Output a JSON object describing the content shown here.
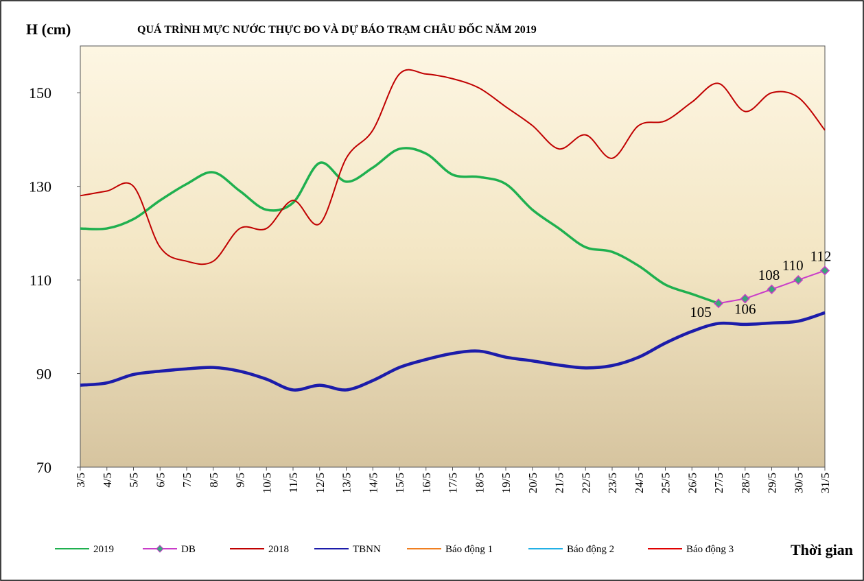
{
  "chart_data": {
    "type": "line",
    "title": "QUÁ TRÌNH MỰC NƯỚC THỰC ĐO VÀ DỰ BÁO TRẠM CHÂU ĐỐC NĂM 2019",
    "y_label": "H (cm)",
    "x_label": "Thời gian",
    "categories": [
      "3/5",
      "4/5",
      "5/5",
      "6/5",
      "7/5",
      "8/5",
      "9/5",
      "10/5",
      "11/5",
      "12/5",
      "13/5",
      "14/5",
      "15/5",
      "16/5",
      "17/5",
      "18/5",
      "19/5",
      "20/5",
      "21/5",
      "22/5",
      "23/5",
      "24/5",
      "25/5",
      "26/5",
      "27/5",
      "28/5",
      "29/5",
      "30/5",
      "31/5"
    ],
    "ylim": [
      70,
      160
    ],
    "yticks": [
      70,
      90,
      110,
      130,
      150
    ],
    "series": [
      {
        "name": "2019",
        "color": "#1fb04f",
        "values": [
          121,
          121,
          123,
          127,
          130.5,
          133,
          129,
          125,
          126.5,
          135,
          131,
          134,
          138,
          137,
          132.5,
          132,
          130.5,
          125,
          121,
          117,
          116,
          113,
          109,
          107,
          105,
          null,
          null,
          null,
          null
        ]
      },
      {
        "name": "DB",
        "color": "#c93cc9",
        "values": [
          null,
          null,
          null,
          null,
          null,
          null,
          null,
          null,
          null,
          null,
          null,
          null,
          null,
          null,
          null,
          null,
          null,
          null,
          null,
          null,
          null,
          null,
          null,
          null,
          105,
          106,
          108,
          110,
          112
        ]
      },
      {
        "name": "2018",
        "color": "#c00000",
        "values": [
          128,
          129,
          130,
          117,
          114,
          114,
          121,
          121,
          127,
          122,
          136,
          142,
          154,
          154,
          153,
          151,
          147,
          143,
          138,
          141,
          136,
          143,
          144,
          148,
          152,
          146,
          150,
          149,
          142
        ]
      },
      {
        "name": "TBNN",
        "color": "#1c1caa",
        "values": [
          87.5,
          88,
          89.8,
          90.5,
          91,
          91.3,
          90.5,
          88.8,
          86.5,
          87.5,
          86.5,
          88.5,
          91.3,
          93,
          94.3,
          94.8,
          93.5,
          92.7,
          91.8,
          91.2,
          91.7,
          93.5,
          96.5,
          99,
          100.7,
          100.5,
          100.8,
          101.2,
          103
        ]
      },
      {
        "name": "Báo động 1",
        "color": "#f07f20",
        "values": [
          null,
          null,
          null,
          null,
          null,
          null,
          null,
          null,
          null,
          null,
          null,
          null,
          null,
          null,
          null,
          null,
          null,
          null,
          null,
          null,
          null,
          null,
          null,
          null,
          null,
          null,
          null,
          null,
          null
        ]
      },
      {
        "name": "Báo động 2",
        "color": "#22b0e6",
        "values": [
          null,
          null,
          null,
          null,
          null,
          null,
          null,
          null,
          null,
          null,
          null,
          null,
          null,
          null,
          null,
          null,
          null,
          null,
          null,
          null,
          null,
          null,
          null,
          null,
          null,
          null,
          null,
          null,
          null
        ]
      },
      {
        "name": "Báo động 3",
        "color": "#e00000",
        "values": [
          null,
          null,
          null,
          null,
          null,
          null,
          null,
          null,
          null,
          null,
          null,
          null,
          null,
          null,
          null,
          null,
          null,
          null,
          null,
          null,
          null,
          null,
          null,
          null,
          null,
          null,
          null,
          null,
          null
        ]
      }
    ]
  }
}
